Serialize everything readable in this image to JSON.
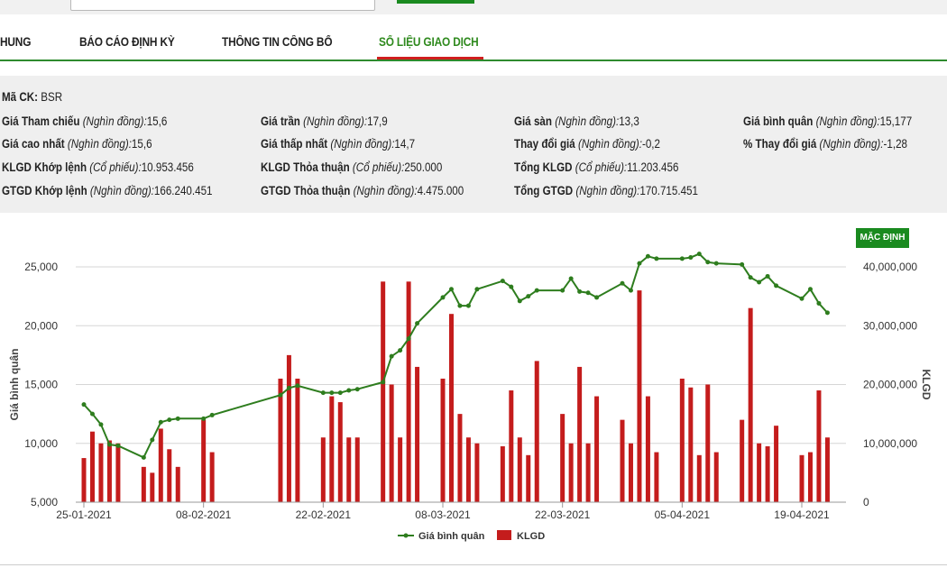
{
  "tabs": [
    {
      "label": "HUNG",
      "active": false
    },
    {
      "label": "BÁO CÁO ĐỊNH KỲ",
      "active": false
    },
    {
      "label": "THÔNG TIN CÔNG BỐ",
      "active": false
    },
    {
      "label": "SỐ LIỆU GIAO DỊCH",
      "active": true
    }
  ],
  "info": {
    "ticker_label": "Mã CK:",
    "ticker": "BSR",
    "ref_label": "Giá Tham chiếu",
    "ref_unit": "(Nghìn đồng):",
    "ref_value": "15,6",
    "ceil_label": "Giá trần",
    "ceil_unit": "(Nghìn đồng):",
    "ceil_value": "17,9",
    "floor_label": "Giá sàn",
    "floor_unit": "(Nghìn đồng):",
    "floor_value": "13,3",
    "avg_label": "Giá bình quân",
    "avg_unit": "(Nghìn đồng):",
    "avg_value": "15,177",
    "high_label": "Giá cao nhất",
    "high_unit": "(Nghìn đồng):",
    "high_value": "15,6",
    "low_label": "Giá thấp nhất",
    "low_unit": "(Nghìn đồng):",
    "low_value": "14,7",
    "chg_label": "Thay đổi giá",
    "chg_unit": "(Nghìn đồng):",
    "chg_value": "-0,2",
    "pct_label": "% Thay đổi giá",
    "pct_unit": "(Nghìn đồng):",
    "pct_value": "-1,28",
    "klgd_match_label": "KLGD Khớp lệnh",
    "klgd_match_unit": "(Cổ phiếu):",
    "klgd_match_value": "10.953.456",
    "klgd_deal_label": "KLGD Thỏa thuận",
    "klgd_deal_unit": "(Cổ phiếu):",
    "klgd_deal_value": "250.000",
    "klgd_total_label": "Tổng KLGD",
    "klgd_total_unit": "(Cổ phiếu):",
    "klgd_total_value": "11.203.456",
    "gtgd_match_label": "GTGD Khớp lệnh",
    "gtgd_match_unit": "(Nghìn đồng):",
    "gtgd_match_value": "166.240.451",
    "gtgd_deal_label": "GTGD Thỏa thuận",
    "gtgd_deal_unit": "(Nghìn đồng):",
    "gtgd_deal_value": "4.475.000",
    "gtgd_total_label": "Tổng GTGD",
    "gtgd_total_unit": "(Nghìn đồng):",
    "gtgd_total_value": "170.715.451"
  },
  "default_button": "MẶC ĐỊNH",
  "chart_data": {
    "type": "bar+line",
    "ylabel_left": "Giá bình quân",
    "ylabel_right": "KLGD",
    "ylim_left": [
      5000,
      25000
    ],
    "ylim_right": [
      0,
      40000000
    ],
    "yticks_left": [
      "25,000",
      "20,000",
      "15,000",
      "10,000",
      "5,000"
    ],
    "yticks_right": [
      "40,000,000",
      "30,000,000",
      "20,000,000",
      "10,000,000",
      "0"
    ],
    "xticks": [
      "25-01-2021",
      "08-02-2021",
      "22-02-2021",
      "08-03-2021",
      "22-03-2021",
      "05-04-2021",
      "19-04-2021"
    ],
    "dates": [
      "2021-01-25",
      "2021-01-26",
      "2021-01-27",
      "2021-01-28",
      "2021-01-29",
      "2021-02-01",
      "2021-02-02",
      "2021-02-03",
      "2021-02-04",
      "2021-02-05",
      "2021-02-08",
      "2021-02-09",
      "2021-02-17",
      "2021-02-18",
      "2021-02-19",
      "2021-02-22",
      "2021-02-23",
      "2021-02-24",
      "2021-02-25",
      "2021-02-26",
      "2021-03-01",
      "2021-03-02",
      "2021-03-03",
      "2021-03-04",
      "2021-03-05",
      "2021-03-08",
      "2021-03-09",
      "2021-03-10",
      "2021-03-11",
      "2021-03-12",
      "2021-03-15",
      "2021-03-16",
      "2021-03-17",
      "2021-03-18",
      "2021-03-19",
      "2021-03-22",
      "2021-03-23",
      "2021-03-24",
      "2021-03-25",
      "2021-03-26",
      "2021-03-29",
      "2021-03-30",
      "2021-03-31",
      "2021-04-01",
      "2021-04-02",
      "2021-04-05",
      "2021-04-06",
      "2021-04-07",
      "2021-04-08",
      "2021-04-09",
      "2021-04-12",
      "2021-04-13",
      "2021-04-14",
      "2021-04-15",
      "2021-04-16",
      "2021-04-19",
      "2021-04-20",
      "2021-04-21",
      "2021-04-22"
    ],
    "series": [
      {
        "name": "Giá bình quân",
        "kind": "line",
        "color": "#2e7d1e",
        "values": [
          13300,
          12500,
          11600,
          9900,
          9800,
          8800,
          10300,
          11800,
          12000,
          12100,
          12100,
          12400,
          14100,
          14700,
          14900,
          14300,
          14300,
          14300,
          14500,
          14600,
          15200,
          17400,
          17900,
          18900,
          20200,
          22400,
          23100,
          21700,
          21700,
          23100,
          23800,
          23300,
          22100,
          22500,
          23000,
          23000,
          24000,
          22900,
          22800,
          22400,
          23600,
          23000,
          25300,
          25900,
          25700,
          25700,
          25800,
          26100,
          25400,
          25300,
          25200,
          24100,
          23700,
          24200,
          23400,
          22300,
          23100,
          21900,
          21100
        ]
      },
      {
        "name": "KLGD",
        "kind": "bar",
        "color": "#c41c1c",
        "values": [
          7500000,
          12000000,
          10000000,
          10500000,
          10000000,
          6000000,
          5000000,
          12500000,
          9000000,
          6000000,
          14000000,
          8500000,
          21000000,
          25000000,
          21000000,
          11000000,
          18000000,
          17000000,
          11000000,
          11000000,
          37500000,
          20000000,
          11000000,
          37500000,
          23000000,
          21000000,
          32000000,
          15000000,
          11000000,
          10000000,
          9500000,
          19000000,
          11000000,
          8000000,
          24000000,
          15000000,
          10000000,
          23000000,
          10000000,
          18000000,
          14000000,
          10000000,
          36000000,
          18000000,
          8500000,
          21000000,
          19500000,
          8000000,
          20000000,
          8500000,
          14000000,
          33000000,
          10000000,
          9500000,
          13000000,
          8000000,
          8500000,
          19000000,
          11000000
        ]
      }
    ],
    "legend": "bottom"
  }
}
